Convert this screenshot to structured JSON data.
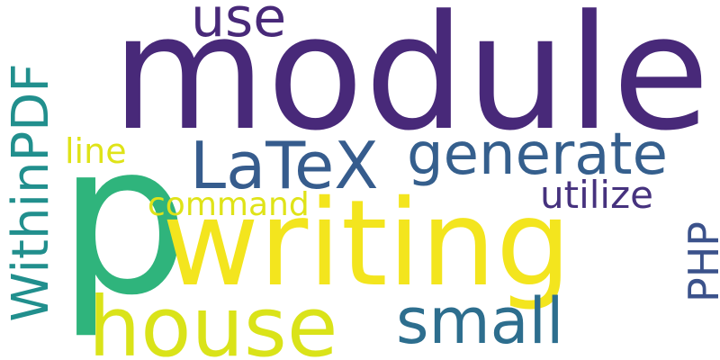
{
  "word_cloud": {
    "words": [
      {
        "key": "module",
        "text": "module",
        "color": "#482979"
      },
      {
        "key": "use",
        "text": "use",
        "color": "#482979"
      },
      {
        "key": "p",
        "text": "p",
        "color": "#2fb47c"
      },
      {
        "key": "writing",
        "text": "writing",
        "color": "#f3e51e"
      },
      {
        "key": "house",
        "text": "house",
        "color": "#dae319"
      },
      {
        "key": "small",
        "text": "small",
        "color": "#2d6e8e"
      },
      {
        "key": "generate",
        "text": "generate",
        "color": "#355f8d"
      },
      {
        "key": "latex",
        "text": "LaTeX",
        "color": "#365c8d"
      },
      {
        "key": "utilize",
        "text": "utilize",
        "color": "#46327e"
      },
      {
        "key": "command",
        "text": "command",
        "color": "#dfe318"
      },
      {
        "key": "line",
        "text": "line",
        "color": "#dfe318"
      },
      {
        "key": "withinpdf",
        "text": "WithinPDF",
        "color": "#218f8d"
      },
      {
        "key": "php",
        "text": "PHP",
        "color": "#3b528b"
      }
    ]
  }
}
